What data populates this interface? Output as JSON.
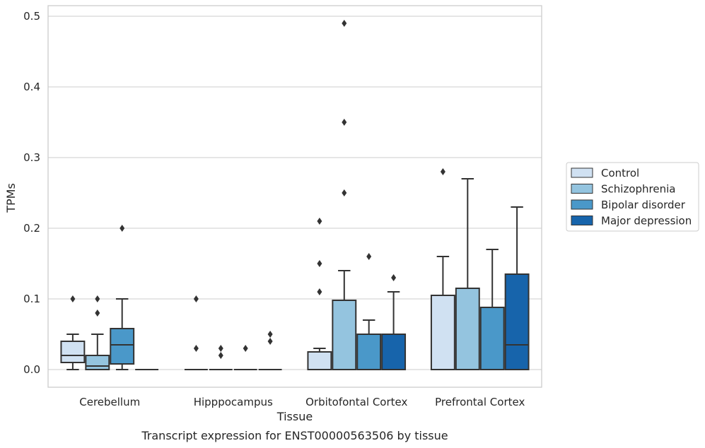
{
  "chart_data": {
    "type": "box",
    "title": "Transcript expression for ENST00000563506 by tissue",
    "xlabel": "Tissue",
    "ylabel": "TPMs",
    "ylim": [
      -0.025,
      0.515
    ],
    "yticks": [
      0.0,
      0.1,
      0.2,
      0.3,
      0.4,
      0.5
    ],
    "ytick_labels": [
      "0.0",
      "0.1",
      "0.2",
      "0.3",
      "0.4",
      "0.5"
    ],
    "grid": "horizontal",
    "legend_position": "right",
    "categories": [
      "Cerebellum",
      "Hipppocampus",
      "Orbitofontal Cortex",
      "Prefrontal Cortex"
    ],
    "series": [
      {
        "name": "Control",
        "color": "#d0e1f2",
        "boxes": [
          {
            "whisker_low": 0.0,
            "q1": 0.01,
            "median": 0.02,
            "q3": 0.04,
            "whisker_high": 0.05,
            "outliers": [
              0.1
            ]
          },
          {
            "whisker_low": 0.0,
            "q1": 0.0,
            "median": 0.0,
            "q3": 0.0,
            "whisker_high": 0.0,
            "outliers": [
              0.1,
              0.03
            ]
          },
          {
            "whisker_low": 0.0,
            "q1": 0.0,
            "median": 0.0,
            "q3": 0.025,
            "whisker_high": 0.03,
            "outliers": [
              0.11,
              0.15,
              0.21
            ]
          },
          {
            "whisker_low": 0.0,
            "q1": 0.0,
            "median": 0.0,
            "q3": 0.105,
            "whisker_high": 0.16,
            "outliers": [
              0.28
            ]
          }
        ]
      },
      {
        "name": "Schizophrenia",
        "color": "#94c4df",
        "boxes": [
          {
            "whisker_low": 0.0,
            "q1": 0.0,
            "median": 0.005,
            "q3": 0.02,
            "whisker_high": 0.05,
            "outliers": [
              0.08,
              0.1
            ]
          },
          {
            "whisker_low": 0.0,
            "q1": 0.0,
            "median": 0.0,
            "q3": 0.0,
            "whisker_high": 0.0,
            "outliers": [
              0.02,
              0.03
            ]
          },
          {
            "whisker_low": 0.0,
            "q1": 0.0,
            "median": 0.0,
            "q3": 0.098,
            "whisker_high": 0.14,
            "outliers": [
              0.25,
              0.35,
              0.49
            ]
          },
          {
            "whisker_low": 0.0,
            "q1": 0.0,
            "median": 0.0,
            "q3": 0.115,
            "whisker_high": 0.27,
            "outliers": []
          }
        ]
      },
      {
        "name": "Bipolar disorder",
        "color": "#4a98c9",
        "boxes": [
          {
            "whisker_low": 0.0,
            "q1": 0.008,
            "median": 0.035,
            "q3": 0.058,
            "whisker_high": 0.1,
            "outliers": [
              0.2
            ]
          },
          {
            "whisker_low": 0.0,
            "q1": 0.0,
            "median": 0.0,
            "q3": 0.0,
            "whisker_high": 0.0,
            "outliers": [
              0.03
            ]
          },
          {
            "whisker_low": 0.0,
            "q1": 0.0,
            "median": 0.0,
            "q3": 0.05,
            "whisker_high": 0.07,
            "outliers": [
              0.16
            ]
          },
          {
            "whisker_low": 0.0,
            "q1": 0.0,
            "median": 0.0,
            "q3": 0.088,
            "whisker_high": 0.17,
            "outliers": []
          }
        ]
      },
      {
        "name": "Major depression",
        "color": "#1764ab",
        "boxes": [
          {
            "whisker_low": 0.0,
            "q1": 0.0,
            "median": 0.0,
            "q3": 0.0,
            "whisker_high": 0.0,
            "outliers": []
          },
          {
            "whisker_low": 0.0,
            "q1": 0.0,
            "median": 0.0,
            "q3": 0.0,
            "whisker_high": 0.0,
            "outliers": [
              0.04,
              0.05
            ]
          },
          {
            "whisker_low": 0.0,
            "q1": 0.0,
            "median": 0.0,
            "q3": 0.05,
            "whisker_high": 0.11,
            "outliers": [
              0.13
            ]
          },
          {
            "whisker_low": 0.0,
            "q1": 0.0,
            "median": 0.035,
            "q3": 0.135,
            "whisker_high": 0.23,
            "outliers": []
          }
        ]
      }
    ]
  }
}
